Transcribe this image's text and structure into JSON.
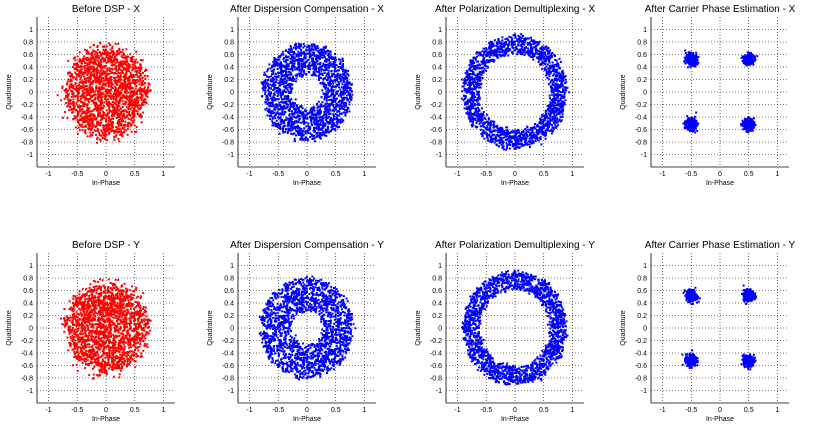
{
  "figure": {
    "background": "#ffffff"
  },
  "chart_data": [
    {
      "type": "scatter",
      "title": "Before DSP - X",
      "xlabel": "In-Phase",
      "ylabel": "Quadrature",
      "xlim": [
        -1.2,
        1.2
      ],
      "ylim": [
        -1.2,
        1.2
      ],
      "xticks": [
        "-1",
        "-0.5",
        "0",
        "0.5",
        "1"
      ],
      "yticks": [
        "1",
        "0.8",
        "0.6",
        "0.4",
        "0.2",
        "0",
        "-0.2",
        "-0.4",
        "-0.6",
        "-0.8",
        "-1"
      ],
      "grid": true,
      "grid_style": "dotted",
      "color": "#ff0000",
      "series": [
        {
          "shape": "disk",
          "center": [
            0,
            0
          ],
          "radius": 0.72,
          "approx_points": 1800
        }
      ]
    },
    {
      "type": "scatter",
      "title": "After Dispersion Compensation - X",
      "xlabel": "In-Phase",
      "ylabel": "Quadrature",
      "xlim": [
        -1.2,
        1.2
      ],
      "ylim": [
        -1.2,
        1.2
      ],
      "xticks": [
        "-1",
        "-0.5",
        "0",
        "0.5",
        "1"
      ],
      "yticks": [
        "1",
        "0.8",
        "0.6",
        "0.4",
        "0.2",
        "0",
        "-0.2",
        "-0.4",
        "-0.6",
        "-0.8",
        "-1"
      ],
      "grid": true,
      "grid_style": "dotted",
      "color": "#0000ff",
      "series": [
        {
          "shape": "annulus",
          "center": [
            0,
            0
          ],
          "inner_radius": 0.28,
          "outer_radius": 0.78,
          "approx_points": 1800
        }
      ]
    },
    {
      "type": "scatter",
      "title": "After Polarization Demultiplexing - X",
      "xlabel": "In-Phase",
      "ylabel": "Quadrature",
      "xlim": [
        -1.2,
        1.2
      ],
      "ylim": [
        -1.2,
        1.2
      ],
      "xticks": [
        "-1",
        "-0.5",
        "0",
        "0.5",
        "1"
      ],
      "yticks": [
        "1",
        "0.8",
        "0.6",
        "0.4",
        "0.2",
        "0",
        "-0.2",
        "-0.4",
        "-0.6",
        "-0.8",
        "-1"
      ],
      "grid": true,
      "grid_style": "dotted",
      "color": "#0000ff",
      "series": [
        {
          "shape": "ring",
          "center": [
            0,
            0
          ],
          "inner_radius": 0.62,
          "outer_radius": 0.9,
          "approx_points": 1800
        }
      ]
    },
    {
      "type": "scatter",
      "title": "After Carrier Phase Estimation - X",
      "xlabel": "In-Phase",
      "ylabel": "Quadrature",
      "xlim": [
        -1.2,
        1.2
      ],
      "ylim": [
        -1.2,
        1.2
      ],
      "xticks": [
        "-1",
        "-0.5",
        "0",
        "0.5",
        "1"
      ],
      "yticks": [
        "1",
        "0.8",
        "0.6",
        "0.4",
        "0.2",
        "0",
        "-0.2",
        "-0.4",
        "-0.6",
        "-0.8",
        "-1"
      ],
      "grid": true,
      "grid_style": "dotted",
      "color": "#0000ff",
      "series": [
        {
          "shape": "clusters",
          "centers": [
            [
              -0.5,
              0.52
            ],
            [
              0.5,
              0.52
            ],
            [
              -0.5,
              -0.52
            ],
            [
              0.5,
              -0.52
            ]
          ],
          "radius": 0.09,
          "approx_points": 1200
        }
      ]
    },
    {
      "type": "scatter",
      "title": "Before DSP - Y",
      "xlabel": "In-Phase",
      "ylabel": "Quadrature",
      "xlim": [
        -1.2,
        1.2
      ],
      "ylim": [
        -1.2,
        1.2
      ],
      "xticks": [
        "-1",
        "-0.5",
        "0",
        "0.5",
        "1"
      ],
      "yticks": [
        "1",
        "0.8",
        "0.6",
        "0.4",
        "0.2",
        "0",
        "-0.2",
        "-0.4",
        "-0.6",
        "-0.8",
        "-1"
      ],
      "grid": true,
      "grid_style": "dotted",
      "color": "#ff0000",
      "series": [
        {
          "shape": "disk",
          "center": [
            0,
            0
          ],
          "radius": 0.72,
          "approx_points": 1800
        }
      ]
    },
    {
      "type": "scatter",
      "title": "After Dispersion Compensation - Y",
      "xlabel": "In-Phase",
      "ylabel": "Quadrature",
      "xlim": [
        -1.2,
        1.2
      ],
      "ylim": [
        -1.2,
        1.2
      ],
      "xticks": [
        "-1",
        "-0.5",
        "0",
        "0.5",
        "1"
      ],
      "yticks": [
        "1",
        "0.8",
        "0.6",
        "0.4",
        "0.2",
        "0",
        "-0.2",
        "-0.4",
        "-0.6",
        "-0.8",
        "-1"
      ],
      "grid": true,
      "grid_style": "dotted",
      "color": "#0000ff",
      "series": [
        {
          "shape": "annulus",
          "center": [
            0,
            0
          ],
          "inner_radius": 0.28,
          "outer_radius": 0.8,
          "approx_points": 1800
        }
      ]
    },
    {
      "type": "scatter",
      "title": "After Polarization Demultiplexing - Y",
      "xlabel": "In-Phase",
      "ylabel": "Quadrature",
      "xlim": [
        -1.2,
        1.2
      ],
      "ylim": [
        -1.2,
        1.2
      ],
      "xticks": [
        "-1",
        "-0.5",
        "0",
        "0.5",
        "1"
      ],
      "yticks": [
        "1",
        "0.8",
        "0.6",
        "0.4",
        "0.2",
        "0",
        "-0.2",
        "-0.4",
        "-0.6",
        "-0.8",
        "-1"
      ],
      "grid": true,
      "grid_style": "dotted",
      "color": "#0000ff",
      "series": [
        {
          "shape": "ring",
          "center": [
            0,
            0
          ],
          "inner_radius": 0.62,
          "outer_radius": 0.9,
          "approx_points": 1800
        }
      ]
    },
    {
      "type": "scatter",
      "title": "After Carrier Phase Estimation - Y",
      "xlabel": "In-Phase",
      "ylabel": "Quadrature",
      "xlim": [
        -1.2,
        1.2
      ],
      "ylim": [
        -1.2,
        1.2
      ],
      "xticks": [
        "-1",
        "-0.5",
        "0",
        "0.5",
        "1"
      ],
      "yticks": [
        "1",
        "0.8",
        "0.6",
        "0.4",
        "0.2",
        "0",
        "-0.2",
        "-0.4",
        "-0.6",
        "-0.8",
        "-1"
      ],
      "grid": true,
      "grid_style": "dotted",
      "color": "#0000ff",
      "series": [
        {
          "shape": "clusters",
          "centers": [
            [
              -0.5,
              0.52
            ],
            [
              0.5,
              0.52
            ],
            [
              -0.5,
              -0.52
            ],
            [
              0.5,
              -0.52
            ]
          ],
          "radius": 0.09,
          "approx_points": 1200
        }
      ]
    }
  ]
}
